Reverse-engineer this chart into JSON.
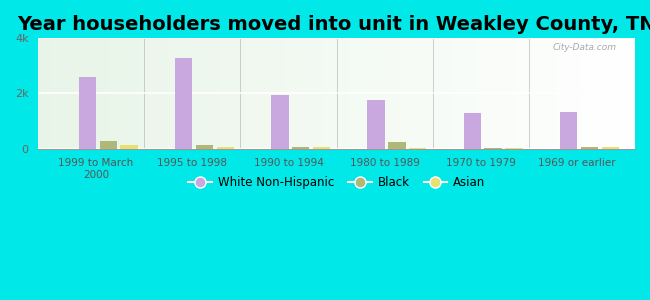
{
  "title": "Year householders moved into unit in Weakley County, TN",
  "categories": [
    "1999 to March\n2000",
    "1995 to 1998",
    "1990 to 1994",
    "1980 to 1989",
    "1970 to 1979",
    "1969 or earlier"
  ],
  "white": [
    2600,
    3300,
    1950,
    1750,
    1300,
    1320
  ],
  "black": [
    280,
    130,
    50,
    230,
    30,
    70
  ],
  "asian": [
    130,
    55,
    60,
    30,
    20,
    60
  ],
  "white_color": "#c9a8e0",
  "black_color": "#b0b878",
  "asian_color": "#e8e070",
  "background_outer": "#00e8e8",
  "bg_color_top": "#e8f5e8",
  "bg_color_right": "#ffffff",
  "ylim": [
    0,
    4000
  ],
  "yticks": [
    0,
    2000,
    4000
  ],
  "ytick_labels": [
    "0",
    "2k",
    "4k"
  ],
  "bar_width": 0.18,
  "title_fontsize": 14,
  "watermark": "City-Data.com"
}
